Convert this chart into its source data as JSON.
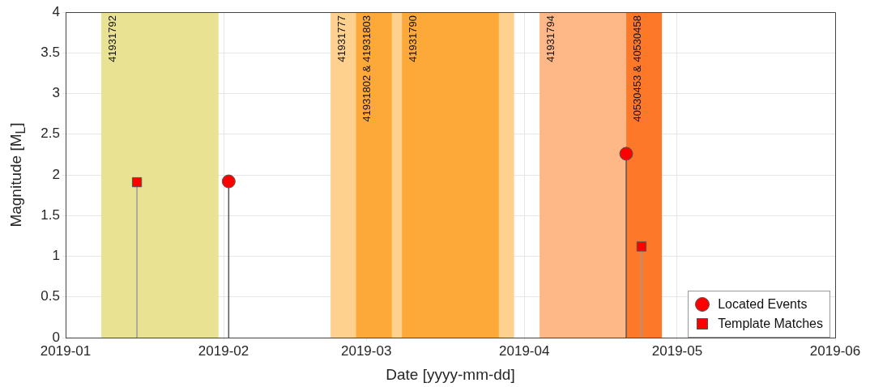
{
  "chart_data": {
    "type": "lollipop",
    "xlabel": "Date [yyyy-mm-dd]",
    "ylabel": "Magnitude [M$_{L}$]",
    "xlim": [
      "2019-01",
      "2019-06"
    ],
    "xticks": [
      "2019-01",
      "2019-02",
      "2019-03",
      "2019-04",
      "2019-05",
      "2019-06"
    ],
    "ylim": [
      0,
      4
    ],
    "yticks": [
      0,
      0.5,
      1,
      1.5,
      2,
      2.5,
      3,
      3.5,
      4
    ],
    "grid": true,
    "legend": "bottom right",
    "series": [
      {
        "name": "Located Events",
        "color": "#ff0000",
        "marker": "circle",
        "x": [
          "2019-02-02",
          "2019-04-21"
        ],
        "values": [
          1.92,
          2.26
        ]
      },
      {
        "name": "Template Matches",
        "color": "#ff0000",
        "marker": "square",
        "x": [
          "2019-01-15",
          "2019-04-24"
        ],
        "values": [
          1.91,
          1.12
        ]
      }
    ],
    "bands": [
      {
        "axis": "x",
        "from": "2019-01-08",
        "to": "2019-01-31",
        "label": "41931792",
        "color": "#e9e293"
      },
      {
        "axis": "x",
        "from": "2019-02-22",
        "to": "2019-03-30",
        "label": "41931777",
        "color": "#fed18e"
      },
      {
        "axis": "x",
        "from": "2019-02-27",
        "to": "2019-03-06",
        "label": "41931802 & 41931803",
        "color": "#fda93a"
      },
      {
        "axis": "x",
        "from": "2019-03-08",
        "to": "2019-03-27",
        "label": "41931790",
        "color": "#fda93a"
      },
      {
        "axis": "x",
        "from": "2019-04-04",
        "to": "2019-04-21",
        "label": "41931794",
        "color": "#feb888"
      },
      {
        "axis": "x",
        "from": "2019-04-21",
        "to": "2019-04-28",
        "label": "40530453 & 40530458",
        "color": "#fe7829"
      }
    ]
  }
}
